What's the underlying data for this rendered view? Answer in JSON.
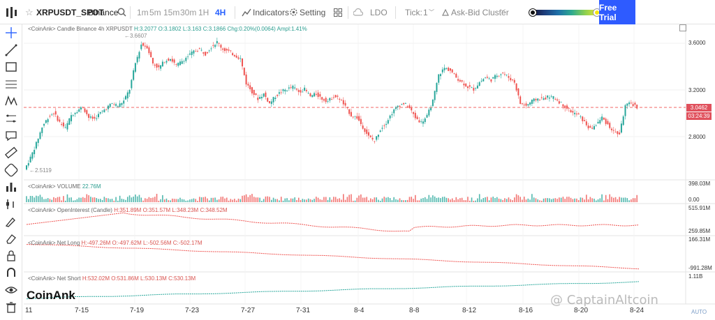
{
  "app": {
    "symbol": "XRPUSDT_SPOT",
    "exchange": "Binance",
    "timeframes": [
      "1m",
      "5m",
      "15m",
      "30m",
      "1H",
      "4H"
    ],
    "active_timeframe": "4H",
    "indicators_label": "Indicators",
    "setting_label": "Setting",
    "coin": "LDO",
    "tick_label": "Tick:",
    "tick_value": "1",
    "cluster_label": "Ask-Bid Cluster",
    "free_trial_label": "Free Trial"
  },
  "colors": {
    "up": "#26a69a",
    "down": "#ef5350",
    "accent": "#2e5bff"
  },
  "candle_panel": {
    "label": "<CoinAnk> Candle   Binance 4h XRPUSDT",
    "h": "H:3.2077",
    "o": "O:3.1802",
    "l": "L:3.163",
    "c": "C:3.1866",
    "chg": "Chg:0.20%(0.0064)",
    "ampl": "Ampl:1.41%",
    "high_marker": "3.6607",
    "low_marker": "2.5119",
    "y_ticks": [
      "3.6000",
      "3.2000",
      "2.8000"
    ],
    "last_price": "3.0462",
    "countdown": "03:24:39"
  },
  "volume_panel": {
    "label": "<CoinAnk> VOLUME",
    "value": "22.76M",
    "y_ticks": [
      "398.03M",
      "0.00"
    ]
  },
  "oi_panel": {
    "label": "<CoinAnk> OpenInterest (Candle)",
    "h": "H:351.89M",
    "o": "O:351.57M",
    "l": "L:348.23M",
    "c": "C:348.52M",
    "y_ticks": [
      "515.91M",
      "259.85M"
    ]
  },
  "netlong_panel": {
    "label": "<CoinAnk> Net Long",
    "h": "H:-497.26M",
    "o": "O:-497.62M",
    "l": "L:-502.56M",
    "c": "C:-502.17M",
    "y_ticks": [
      "166.31M",
      "-991.28M"
    ]
  },
  "netshort_panel": {
    "label": "<CoinAnk> Net Short",
    "h": "H:532.02M",
    "o": "O:531.86M",
    "l": "L:530.13M",
    "c": "C:530.13M",
    "y_ticks": [
      "1.11B"
    ]
  },
  "x_axis": [
    "11",
    "7-15",
    "7-19",
    "7-23",
    "7-27",
    "7-31",
    "8-4",
    "8-8",
    "8-12",
    "8-16",
    "8-20",
    "8-24"
  ],
  "brand": "CoinAnk",
  "watermark": "@ CaptainAltcoin",
  "auto_label": "AUTO",
  "sidebar_icons": [
    "crosshair-icon",
    "trend-line-icon",
    "rectangle-icon",
    "fib-icon",
    "pattern-icon",
    "projection-icon",
    "comment-icon",
    "ruler-icon",
    "magnet-icon",
    "bar-chart-icon",
    "indicator-icon",
    "brush-icon",
    "eraser-icon",
    "lock-icon",
    "magnet-u-icon",
    "eye-icon",
    "trash-icon"
  ],
  "chart_data": {
    "type": "candlestick",
    "price_series": [
      2.52,
      2.62,
      2.74,
      2.88,
      2.96,
      3.0,
      2.92,
      2.87,
      2.98,
      3.02,
      3.05,
      2.96,
      2.95,
      3.0,
      3.04,
      3.08,
      3.06,
      3.1,
      3.2,
      3.42,
      3.58,
      3.56,
      3.42,
      3.38,
      3.44,
      3.46,
      3.4,
      3.44,
      3.48,
      3.52,
      3.54,
      3.5,
      3.56,
      3.6,
      3.54,
      3.52,
      3.49,
      3.46,
      3.25,
      3.18,
      3.12,
      3.16,
      3.08,
      3.14,
      3.18,
      3.2,
      3.22,
      3.18,
      3.2,
      3.14,
      3.16,
      3.12,
      3.1,
      3.14,
      3.12,
      3.05,
      2.98,
      2.96,
      2.88,
      2.8,
      2.76,
      2.86,
      2.92,
      3.0,
      3.06,
      3.08,
      3.04,
      2.96,
      2.92,
      2.97,
      3.1,
      3.32,
      3.38,
      3.36,
      3.3,
      3.26,
      3.22,
      3.2,
      3.26,
      3.3,
      3.28,
      3.32,
      3.34,
      3.3,
      3.26,
      3.08,
      3.06,
      3.1,
      3.12,
      3.12,
      3.14,
      3.12,
      3.08,
      3.04,
      3.0,
      2.98,
      2.92,
      2.86,
      2.9,
      2.96,
      2.9,
      2.84,
      2.82,
      3.06,
      3.08,
      3.05
    ],
    "y_range": [
      2.45,
      3.72
    ]
  }
}
